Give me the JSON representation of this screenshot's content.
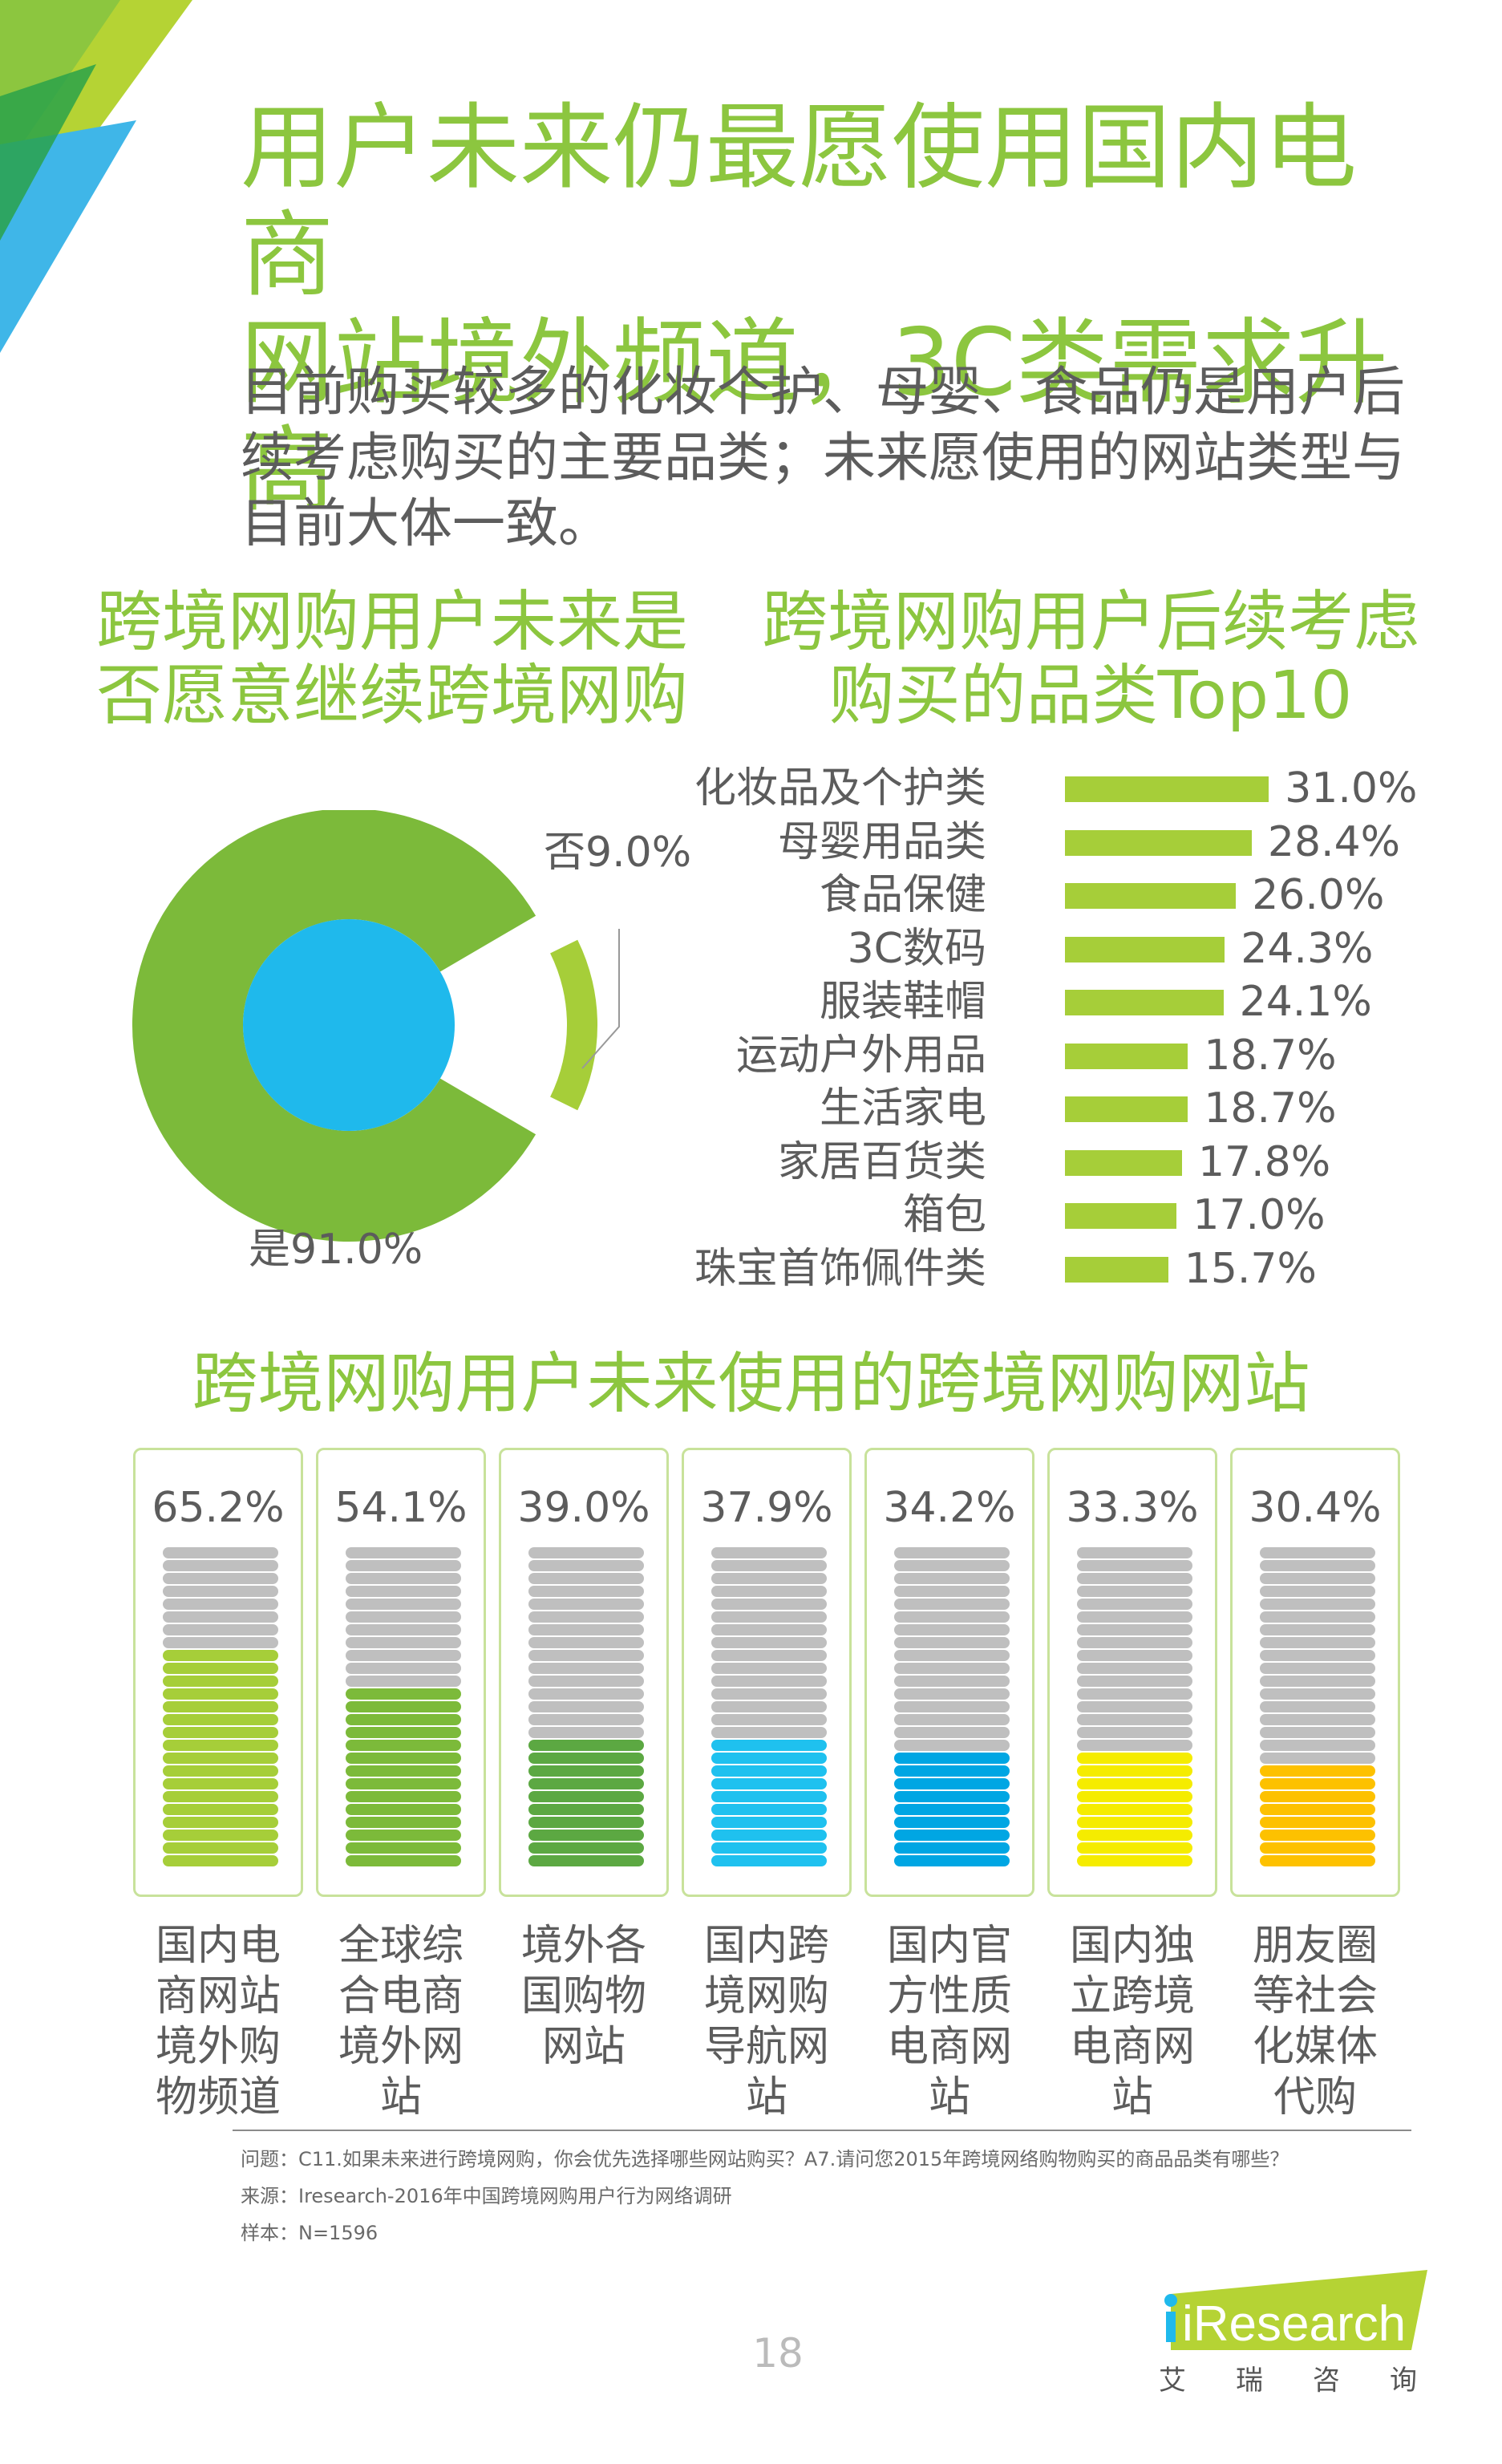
{
  "header": {
    "title_line1": "用户未来仍最愿使用国内电商",
    "title_line2": "网站境外频道，3C类需求升高",
    "intro_line1": "目前购买较多的化妆个护、母婴、食品仍是用户后",
    "intro_line2": "续考虑购买的主要品类；未来愿使用的网站类型与",
    "intro_line3": "目前大体一致。"
  },
  "colors": {
    "title": "#8cc63f",
    "pie_outer": "#7cba3a",
    "pie_no": "#a6ce39",
    "pie_center": "#1fb9ec",
    "bar": "#a6ce39",
    "gray_fill": "#bfbfbf"
  },
  "sections": {
    "left_title_line1": "跨境网购用户未来是",
    "left_title_line2": "否愿意继续跨境网购",
    "right_title_line1": "跨境网购用户后续考虑",
    "right_title_line2": "购买的品类Top10",
    "bottom_title": "跨境网购用户未来使用的跨境网购网站"
  },
  "chart_data": [
    {
      "type": "pie",
      "title": "跨境网购用户未来是否愿意继续跨境网购",
      "slices": [
        {
          "label": "是91.0%",
          "name": "是",
          "value": 91.0
        },
        {
          "label": "否9.0%",
          "name": "否",
          "value": 9.0
        }
      ]
    },
    {
      "type": "bar",
      "orientation": "horizontal",
      "title": "跨境网购用户后续考虑购买的品类Top10",
      "categories": [
        "化妆品及个护类",
        "母婴用品类",
        "食品保健",
        "3C数码",
        "服装鞋帽",
        "运动户外用品",
        "生活家电",
        "家居百货类",
        "箱包",
        "珠宝首饰佩件类"
      ],
      "values": [
        31.0,
        28.4,
        26.0,
        24.3,
        24.1,
        18.7,
        18.7,
        17.8,
        17.0,
        15.7
      ],
      "value_labels": [
        "31.0%",
        "28.4%",
        "26.0%",
        "24.3%",
        "24.1%",
        "18.7%",
        "18.7%",
        "17.8%",
        "17.0%",
        "15.7%"
      ],
      "xlim": [
        0,
        100
      ]
    },
    {
      "type": "bar",
      "orientation": "vertical-fill",
      "title": "跨境网购用户未来使用的跨境网购网站",
      "categories": [
        "国内电商网站境外购物频道",
        "全球综合电商境外网站",
        "境外各国购物网站",
        "国内跨境网购导航网站",
        "国内官方性质电商网站",
        "国内独立跨境电商网站",
        "朋友圈等社会化媒体代购"
      ],
      "label_lines": [
        [
          "国内电",
          "商网站",
          "境外购",
          "物频道"
        ],
        [
          "全球综",
          "合电商",
          "境外网",
          "站"
        ],
        [
          "境外各",
          "国购物",
          "网站"
        ],
        [
          "国内跨",
          "境网购",
          "导航网",
          "站"
        ],
        [
          "国内官",
          "方性质",
          "电商网",
          "站"
        ],
        [
          "国内独",
          "立跨境",
          "电商网",
          "站"
        ],
        [
          "朋友圈",
          "等社会",
          "化媒体",
          "代购"
        ]
      ],
      "values": [
        65.2,
        54.1,
        39.0,
        37.9,
        34.2,
        33.3,
        30.4
      ],
      "value_labels": [
        "65.2%",
        "54.1%",
        "39.0%",
        "37.9%",
        "34.2%",
        "33.3%",
        "30.4%"
      ],
      "colors": [
        "#a6ce39",
        "#7cba3a",
        "#5ca842",
        "#1fc1ef",
        "#00a6e3",
        "#f5ec00",
        "#fdc100"
      ],
      "ylim": [
        0,
        100
      ]
    }
  ],
  "footer": {
    "question": "问题：C11.如果未来进行跨境网购，你会优先选择哪些网站购买？A7.请问您2015年跨境网络购物购买的商品品类有哪些？",
    "source": "来源：Iresearch-2016年中国跨境网购用户行为网络调研",
    "sample": "样本：N=1596",
    "page_number": "18",
    "brand": "iResearch",
    "brand_cn": "艾瑞咨询"
  }
}
